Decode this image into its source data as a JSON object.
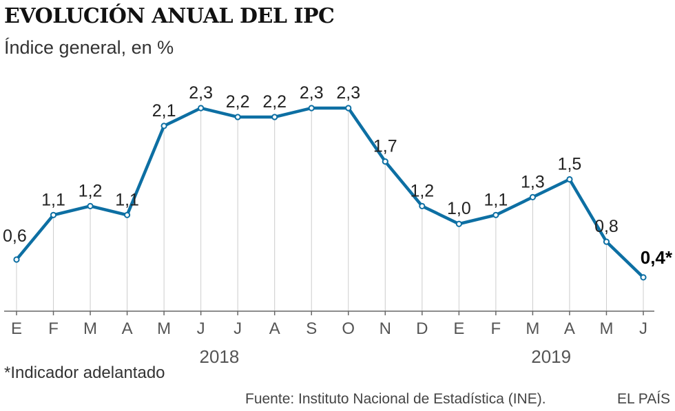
{
  "header": {
    "title": "EVOLUCIÓN ANUAL DEL IPC",
    "subtitle": "Índice general, en %"
  },
  "chart_data": {
    "type": "line",
    "title": "EVOLUCIÓN ANUAL DEL IPC",
    "subtitle": "Índice general, en %",
    "xlabel": "",
    "ylabel": "",
    "categories": [
      "E",
      "F",
      "M",
      "A",
      "M",
      "J",
      "J",
      "A",
      "S",
      "O",
      "N",
      "D",
      "E",
      "F",
      "M",
      "A",
      "M",
      "J"
    ],
    "series": [
      {
        "name": "IPC",
        "values": [
          0.6,
          1.1,
          1.2,
          1.1,
          2.1,
          2.3,
          2.2,
          2.2,
          2.3,
          2.3,
          1.7,
          1.2,
          1.0,
          1.1,
          1.3,
          1.5,
          0.8,
          0.4
        ]
      }
    ],
    "data_labels": [
      "0,6",
      "1,1",
      "1,2",
      "1,1",
      "2,1",
      "2,3",
      "2,2",
      "2,2",
      "2,3",
      "2,3",
      "1,7",
      "1,2",
      "1,0",
      "1,1",
      "1,3",
      "1,5",
      "0,8",
      "0,4*"
    ],
    "highlight_last": true,
    "year_groups": [
      {
        "label": "2018",
        "from": 0,
        "to": 11
      },
      {
        "label": "2019",
        "from": 12,
        "to": 17
      }
    ],
    "ylim": [
      -0.5,
      2.5
    ],
    "grid": "vertical",
    "colors": {
      "line": "#0d6fa3",
      "marker_fill": "#ffffff",
      "grid": "#cccccc",
      "axis": "#666666"
    }
  },
  "footer": {
    "footnote": "*Indicador adelantado",
    "source": "Fuente: Instituto Nacional de Estadística (INE).",
    "brand": "EL PAÍS"
  }
}
